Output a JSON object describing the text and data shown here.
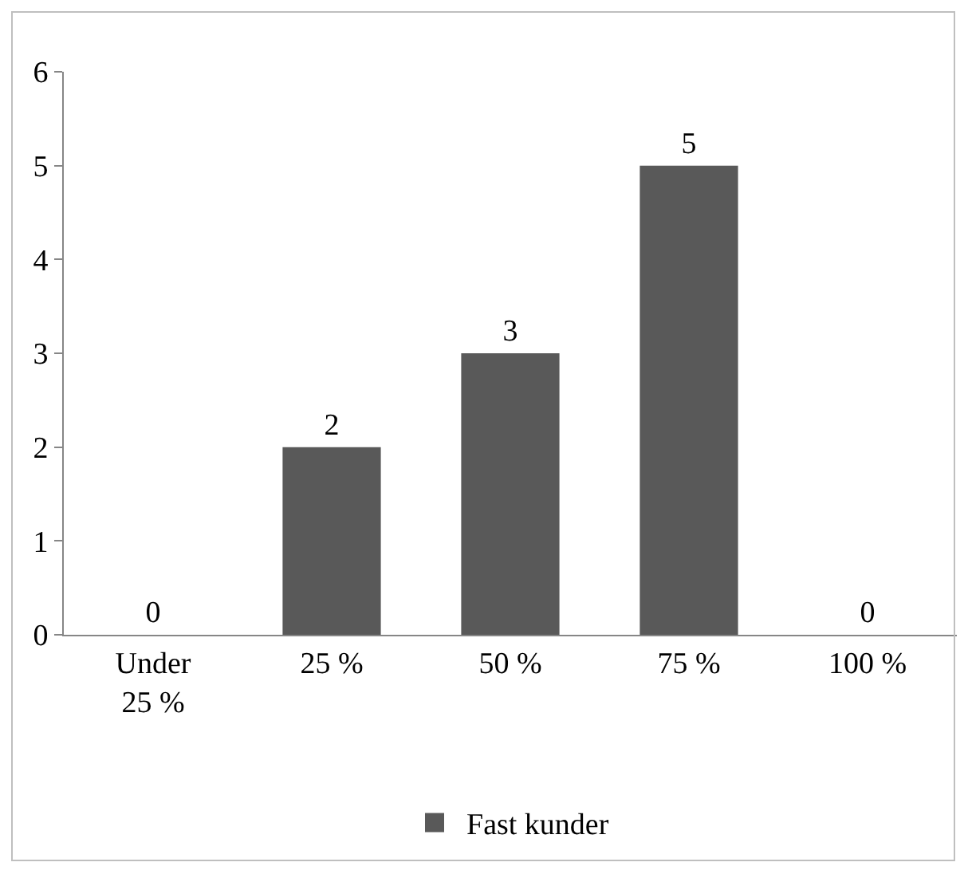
{
  "chart_data": {
    "type": "bar",
    "categories": [
      "Under 25 %",
      "25 %",
      "50 %",
      "75 %",
      "100 %"
    ],
    "series": [
      {
        "name": "Fast kunder",
        "color": "#595959",
        "values": [
          0,
          2,
          3,
          5,
          0
        ]
      }
    ],
    "ylim": [
      0,
      6
    ],
    "yticks": [
      0,
      1,
      2,
      3,
      4,
      5,
      6
    ],
    "grid": false,
    "legend": "bottom",
    "data_labels": true
  }
}
